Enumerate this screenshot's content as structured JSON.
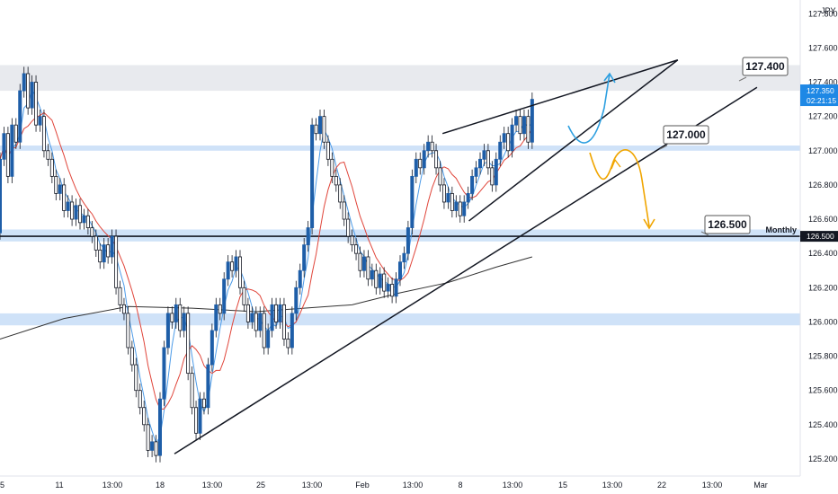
{
  "symbol": "JPY",
  "chart_data": {
    "type": "candlestick",
    "ylim": [
      125.1,
      127.88
    ],
    "y_ticks": [
      "127.800",
      "127.600",
      "127.400",
      "127.200",
      "127.000",
      "126.800",
      "126.600",
      "126.400",
      "126.200",
      "126.000",
      "125.800",
      "125.600",
      "125.400",
      "125.200"
    ],
    "x_ticks": [
      "5",
      "11",
      "13:00",
      "18",
      "13:00",
      "25",
      "13:00",
      "Feb",
      "13:00",
      "8",
      "13:00",
      "15",
      "13:00",
      "22",
      "13:00",
      "Mar"
    ],
    "zones": [
      {
        "from": 127.35,
        "to": 127.5,
        "color": "#e8eaee"
      },
      {
        "from": 127.0,
        "to": 127.03,
        "color": "#cfe2f8"
      },
      {
        "from": 126.47,
        "to": 126.54,
        "color": "#cfe2f8"
      },
      {
        "from": 125.98,
        "to": 126.05,
        "color": "#cfe2f8"
      }
    ],
    "monthly_level": {
      "value": 126.5,
      "label": "Monthly",
      "badge": "126.500"
    },
    "current_price": {
      "value": 127.35,
      "label": "127.350",
      "countdown": "02:21:15"
    },
    "callouts": [
      {
        "text": "127.400",
        "value": 127.4
      },
      {
        "text": "127.000",
        "value": 127.0
      },
      {
        "text": "126.500",
        "value": 126.5
      }
    ],
    "trendlines": [
      {
        "x1": 0.218,
        "y1": 125.23,
        "x2": 0.946,
        "y2": 127.37
      },
      {
        "x1": 0.553,
        "y1": 127.1,
        "x2": 0.847,
        "y2": 127.53
      },
      {
        "x1": 0.586,
        "y1": 126.59,
        "x2": 0.847,
        "y2": 127.53
      }
    ],
    "sma200": [
      [
        0,
        125.9
      ],
      [
        0.08,
        126.02
      ],
      [
        0.16,
        126.09
      ],
      [
        0.24,
        126.08
      ],
      [
        0.32,
        126.06
      ],
      [
        0.38,
        126.08
      ],
      [
        0.44,
        126.1
      ],
      [
        0.5,
        126.17
      ],
      [
        0.56,
        126.23
      ],
      [
        0.62,
        126.32
      ],
      [
        0.665,
        126.38
      ]
    ],
    "candles": [
      [
        0.0,
        126.52,
        126.95
      ],
      [
        0.005,
        126.95,
        127.1
      ],
      [
        0.01,
        127.1,
        126.85
      ],
      [
        0.015,
        126.85,
        127.15
      ],
      [
        0.02,
        127.15,
        127.05
      ],
      [
        0.025,
        127.05,
        127.35
      ],
      [
        0.03,
        127.35,
        127.45
      ],
      [
        0.035,
        127.45,
        127.25
      ],
      [
        0.04,
        127.25,
        127.4
      ],
      [
        0.045,
        127.4,
        127.15
      ],
      [
        0.05,
        127.15,
        127.2
      ],
      [
        0.055,
        127.2,
        127.0
      ],
      [
        0.06,
        127.0,
        126.95
      ],
      [
        0.065,
        126.95,
        126.85
      ],
      [
        0.07,
        126.85,
        126.75
      ],
      [
        0.075,
        126.75,
        126.8
      ],
      [
        0.08,
        126.8,
        126.65
      ],
      [
        0.085,
        126.65,
        126.7
      ],
      [
        0.09,
        126.7,
        126.6
      ],
      [
        0.095,
        126.6,
        126.68
      ],
      [
        0.1,
        126.68,
        126.58
      ],
      [
        0.105,
        126.58,
        126.62
      ],
      [
        0.11,
        126.62,
        126.55
      ],
      [
        0.115,
        126.55,
        126.5
      ],
      [
        0.12,
        126.5,
        126.42
      ],
      [
        0.125,
        126.42,
        126.35
      ],
      [
        0.13,
        126.35,
        126.45
      ],
      [
        0.135,
        126.45,
        126.38
      ],
      [
        0.14,
        126.38,
        126.5
      ],
      [
        0.145,
        126.5,
        126.2
      ],
      [
        0.15,
        126.2,
        126.1
      ],
      [
        0.155,
        126.1,
        126.05
      ],
      [
        0.16,
        126.05,
        125.85
      ],
      [
        0.165,
        125.85,
        125.75
      ],
      [
        0.17,
        125.75,
        125.6
      ],
      [
        0.175,
        125.6,
        125.5
      ],
      [
        0.18,
        125.5,
        125.4
      ],
      [
        0.185,
        125.4,
        125.25
      ],
      [
        0.19,
        125.25,
        125.3
      ],
      [
        0.195,
        125.3,
        125.22
      ],
      [
        0.2,
        125.22,
        125.55
      ],
      [
        0.205,
        125.55,
        125.85
      ],
      [
        0.21,
        125.85,
        126.05
      ],
      [
        0.215,
        126.05,
        126.0
      ],
      [
        0.22,
        126.0,
        126.1
      ],
      [
        0.225,
        126.1,
        125.95
      ],
      [
        0.23,
        125.95,
        126.05
      ],
      [
        0.235,
        126.05,
        125.7
      ],
      [
        0.24,
        125.7,
        125.5
      ],
      [
        0.245,
        125.5,
        125.35
      ],
      [
        0.25,
        125.35,
        125.55
      ],
      [
        0.255,
        125.55,
        125.5
      ],
      [
        0.26,
        125.5,
        125.75
      ],
      [
        0.265,
        125.75,
        125.95
      ],
      [
        0.27,
        125.95,
        126.1
      ],
      [
        0.275,
        126.1,
        126.05
      ],
      [
        0.28,
        126.05,
        126.25
      ],
      [
        0.285,
        126.25,
        126.35
      ],
      [
        0.29,
        126.35,
        126.3
      ],
      [
        0.295,
        126.3,
        126.38
      ],
      [
        0.3,
        126.38,
        126.2
      ],
      [
        0.305,
        126.2,
        126.1
      ],
      [
        0.31,
        126.1,
        126.0
      ],
      [
        0.315,
        126.0,
        126.05
      ],
      [
        0.32,
        126.05,
        125.95
      ],
      [
        0.325,
        125.95,
        126.05
      ],
      [
        0.33,
        126.05,
        125.85
      ],
      [
        0.335,
        125.85,
        125.95
      ],
      [
        0.34,
        125.95,
        126.1
      ],
      [
        0.345,
        126.1,
        126.0
      ],
      [
        0.35,
        126.0,
        126.1
      ],
      [
        0.355,
        126.1,
        125.9
      ],
      [
        0.36,
        125.9,
        125.85
      ],
      [
        0.365,
        125.85,
        126.05
      ],
      [
        0.37,
        126.05,
        126.2
      ],
      [
        0.375,
        126.2,
        126.3
      ],
      [
        0.38,
        126.3,
        126.45
      ],
      [
        0.385,
        126.45,
        126.55
      ],
      [
        0.39,
        126.55,
        127.15
      ],
      [
        0.395,
        127.15,
        127.1
      ],
      [
        0.4,
        127.1,
        127.2
      ],
      [
        0.405,
        127.2,
        127.05
      ],
      [
        0.41,
        127.05,
        126.95
      ],
      [
        0.415,
        126.95,
        126.85
      ],
      [
        0.42,
        126.85,
        126.8
      ],
      [
        0.425,
        126.8,
        126.7
      ],
      [
        0.43,
        126.7,
        126.6
      ],
      [
        0.435,
        126.6,
        126.5
      ],
      [
        0.44,
        126.5,
        126.45
      ],
      [
        0.445,
        126.45,
        126.4
      ],
      [
        0.45,
        126.4,
        126.3
      ],
      [
        0.455,
        126.3,
        126.38
      ],
      [
        0.46,
        126.38,
        126.25
      ],
      [
        0.465,
        126.25,
        126.3
      ],
      [
        0.47,
        126.3,
        126.2
      ],
      [
        0.475,
        126.2,
        126.28
      ],
      [
        0.48,
        126.28,
        126.18
      ],
      [
        0.485,
        126.18,
        126.22
      ],
      [
        0.49,
        126.22,
        126.15
      ],
      [
        0.495,
        126.15,
        126.25
      ],
      [
        0.5,
        126.25,
        126.35
      ],
      [
        0.505,
        126.35,
        126.4
      ],
      [
        0.51,
        126.4,
        126.55
      ],
      [
        0.515,
        126.55,
        126.85
      ],
      [
        0.52,
        126.85,
        126.95
      ],
      [
        0.525,
        126.95,
        126.9
      ],
      [
        0.53,
        126.9,
        127.0
      ],
      [
        0.535,
        127.0,
        127.05
      ],
      [
        0.54,
        127.05,
        127.0
      ],
      [
        0.545,
        127.0,
        126.9
      ],
      [
        0.55,
        126.9,
        126.8
      ],
      [
        0.555,
        126.8,
        126.7
      ],
      [
        0.56,
        126.7,
        126.75
      ],
      [
        0.565,
        126.75,
        126.65
      ],
      [
        0.57,
        126.65,
        126.7
      ],
      [
        0.575,
        126.7,
        126.62
      ],
      [
        0.58,
        126.62,
        126.7
      ],
      [
        0.585,
        126.7,
        126.75
      ],
      [
        0.59,
        126.75,
        126.85
      ],
      [
        0.595,
        126.85,
        126.9
      ],
      [
        0.6,
        126.9,
        126.95
      ],
      [
        0.605,
        126.95,
        127.0
      ],
      [
        0.61,
        127.0,
        126.9
      ],
      [
        0.615,
        126.9,
        126.8
      ],
      [
        0.62,
        126.8,
        126.95
      ],
      [
        0.625,
        126.95,
        127.05
      ],
      [
        0.63,
        127.05,
        127.1
      ],
      [
        0.635,
        127.1,
        127.0
      ],
      [
        0.64,
        127.0,
        127.15
      ],
      [
        0.645,
        127.15,
        127.2
      ],
      [
        0.65,
        127.2,
        127.1
      ],
      [
        0.655,
        127.1,
        127.2
      ],
      [
        0.66,
        127.2,
        127.05
      ],
      [
        0.665,
        127.05,
        127.3
      ]
    ]
  }
}
